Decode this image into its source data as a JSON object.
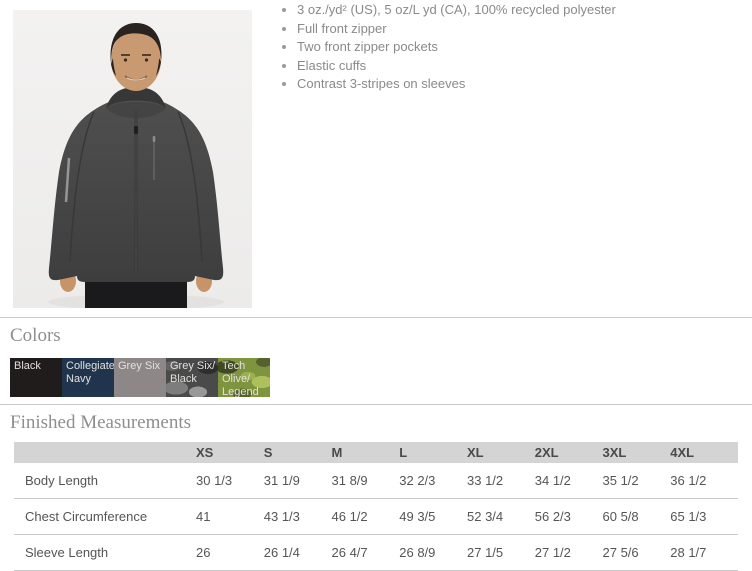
{
  "photo": {
    "description": "Male model wearing a dark charcoal full-zip hooded windbreaker jacket"
  },
  "features": [
    "3 oz./yd² (US), 5 oz/L yd (CA), 100% recycled polyester",
    "Full front zipper",
    "Two front zipper pockets",
    "Elastic cuffs",
    "Contrast 3-stripes on sleeves"
  ],
  "colors_section": {
    "title": "Colors",
    "swatches": [
      {
        "label": "Black",
        "hex": "#211c1c",
        "pattern": "solid"
      },
      {
        "label": "Collegiate Navy",
        "hex": "#20354d",
        "pattern": "solid"
      },
      {
        "label": "Grey Six",
        "hex": "#8d8887",
        "pattern": "solid"
      },
      {
        "label": "Grey Six/ Black",
        "hex": "#4a4a4a",
        "pattern": "camo-grey"
      },
      {
        "label": "Tech Olive/ Legend",
        "hex": "#7f943f",
        "pattern": "camo-olive"
      }
    ]
  },
  "measurements": {
    "title": "Finished Measurements",
    "columns": [
      "XS",
      "S",
      "M",
      "L",
      "XL",
      "2XL",
      "3XL",
      "4XL"
    ],
    "rows": [
      {
        "label": "Body Length",
        "values": [
          "30 1/3",
          "31 1/9",
          "31 8/9",
          "32 2/3",
          "33 1/2",
          "34 1/2",
          "35 1/2",
          "36 1/2"
        ]
      },
      {
        "label": "Chest Circumference",
        "values": [
          "41",
          "43 1/3",
          "46 1/2",
          "49 3/5",
          "52 3/4",
          "56 2/3",
          "60 5/8",
          "65 1/3"
        ]
      },
      {
        "label": "Sleeve Length",
        "values": [
          "26",
          "26 1/4",
          "26 4/7",
          "26 8/9",
          "27 1/5",
          "27 1/2",
          "27 5/6",
          "28 1/7"
        ]
      }
    ]
  },
  "ui_colors": {
    "divider": "#cbcbcb",
    "heading_text": "#8e8e8e",
    "body_text": "#8a8a8a",
    "table_header_bg": "#d4d4d4",
    "table_text": "#555555",
    "photo_background": "#f0efee"
  }
}
